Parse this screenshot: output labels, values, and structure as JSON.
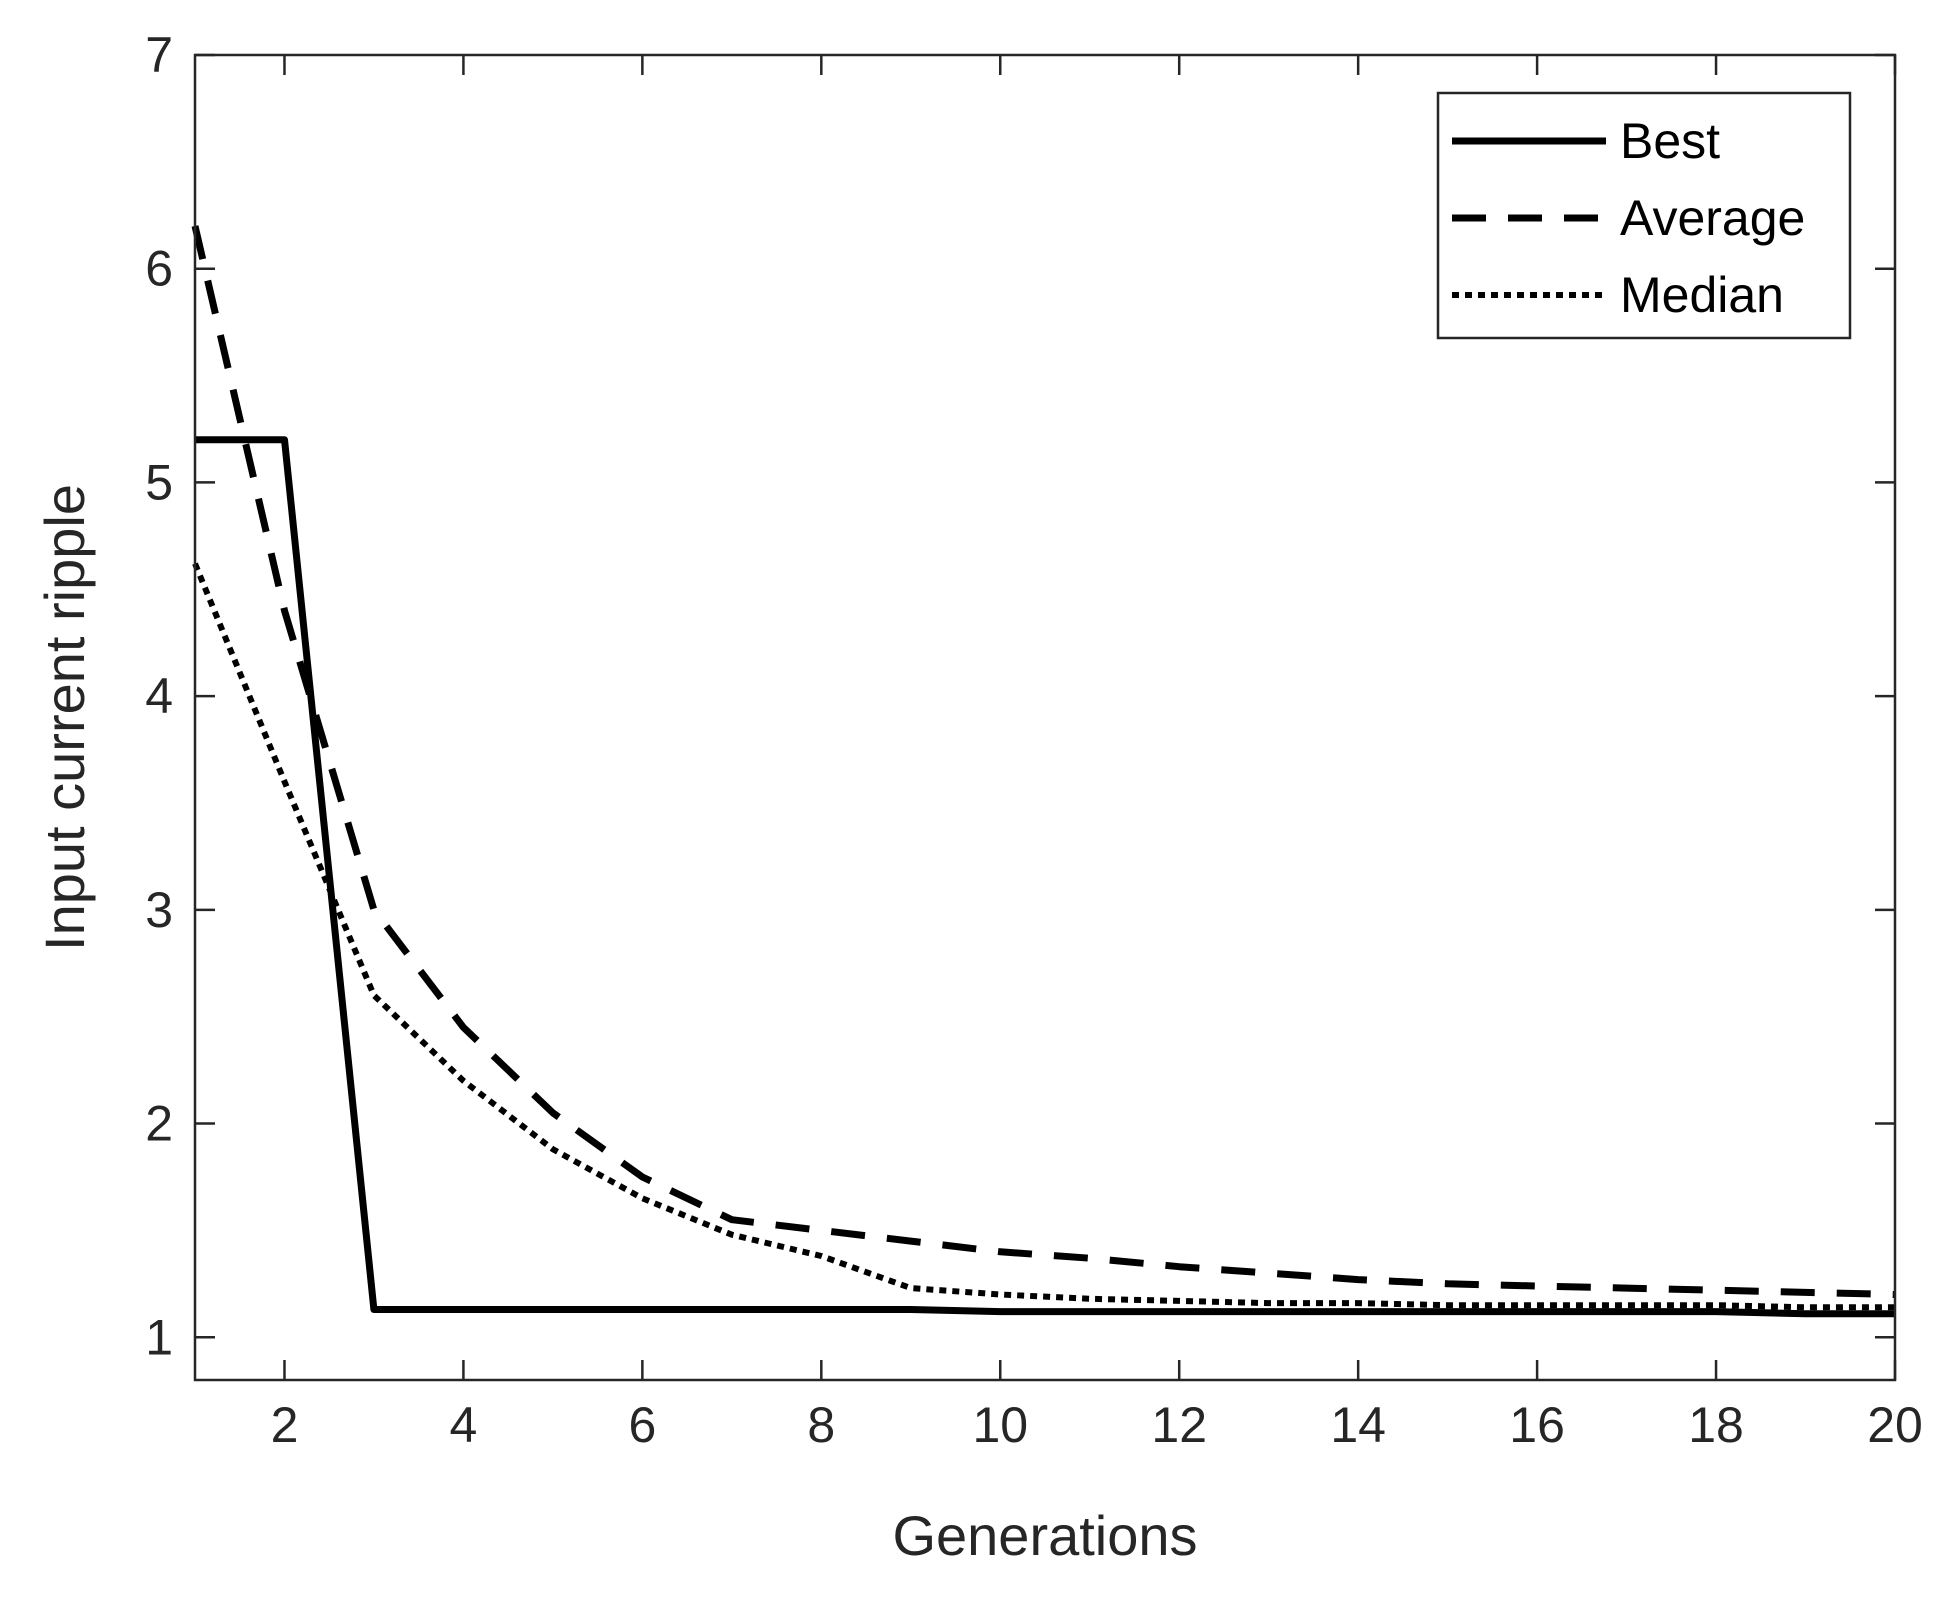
{
  "chart_data": {
    "type": "line",
    "title": "",
    "xlabel": "Generations",
    "ylabel": "Input current ripple",
    "xlim": [
      1,
      20
    ],
    "ylim": [
      0.8,
      7
    ],
    "xticks": [
      2,
      4,
      6,
      8,
      10,
      12,
      14,
      16,
      18,
      20
    ],
    "yticks": [
      1,
      2,
      3,
      4,
      5,
      6,
      7
    ],
    "grid": false,
    "legend_position": "top-right",
    "x": [
      1,
      2,
      3,
      4,
      5,
      6,
      7,
      8,
      9,
      10,
      11,
      12,
      13,
      14,
      15,
      16,
      17,
      18,
      19,
      20
    ],
    "series": [
      {
        "name": "Best",
        "style": "solid",
        "color": "#000000",
        "values": [
          5.2,
          5.2,
          1.13,
          1.13,
          1.13,
          1.13,
          1.13,
          1.13,
          1.13,
          1.12,
          1.12,
          1.12,
          1.12,
          1.12,
          1.12,
          1.12,
          1.12,
          1.12,
          1.11,
          1.11
        ]
      },
      {
        "name": "Average",
        "style": "dashed",
        "color": "#000000",
        "values": [
          6.2,
          4.4,
          3.0,
          2.45,
          2.05,
          1.75,
          1.55,
          1.5,
          1.45,
          1.4,
          1.37,
          1.33,
          1.3,
          1.27,
          1.25,
          1.24,
          1.23,
          1.22,
          1.21,
          1.2
        ]
      },
      {
        "name": "Median",
        "style": "dotted",
        "color": "#000000",
        "values": [
          4.62,
          3.6,
          2.6,
          2.2,
          1.88,
          1.65,
          1.48,
          1.38,
          1.23,
          1.2,
          1.18,
          1.17,
          1.16,
          1.16,
          1.15,
          1.15,
          1.15,
          1.15,
          1.14,
          1.14
        ]
      }
    ]
  }
}
